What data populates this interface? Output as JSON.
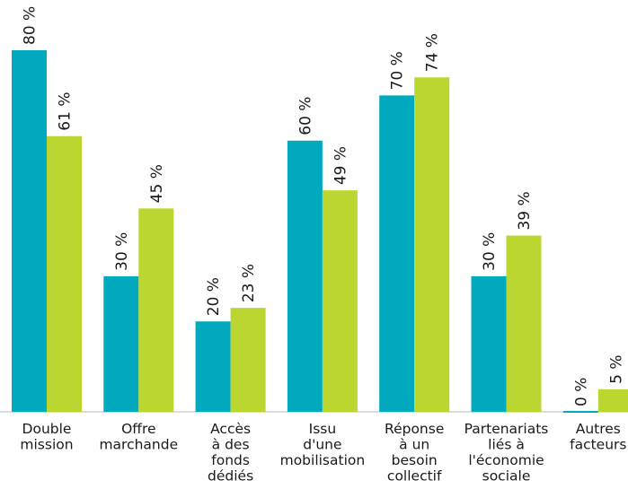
{
  "chart_data": {
    "type": "bar",
    "categories": [
      [
        "Double",
        "mission"
      ],
      [
        "Offre",
        "marchande"
      ],
      [
        "Accès",
        "à des",
        "fonds",
        "dédiés"
      ],
      [
        "Issu",
        "d'une",
        "mobilisation"
      ],
      [
        "Réponse",
        "à un",
        "besoin",
        "collectif"
      ],
      [
        "Partenariats",
        "liés à",
        "l'économie",
        "sociale"
      ],
      [
        "Autres",
        "facteurs"
      ]
    ],
    "series": [
      {
        "color": "#00a9be",
        "values": [
          80,
          30,
          20,
          60,
          70,
          30,
          0
        ],
        "labels": [
          "80 %",
          "30 %",
          "20 %",
          "60 %",
          "70 %",
          "30 %",
          "0 %"
        ]
      },
      {
        "color": "#bcd631",
        "values": [
          61,
          45,
          23,
          49,
          74,
          39,
          5
        ],
        "labels": [
          "61 %",
          "45 %",
          "23 %",
          "49 %",
          "74 %",
          "39 %",
          "5 %"
        ]
      }
    ],
    "ylim": [
      0,
      80
    ],
    "grid": false,
    "legend": "none"
  }
}
